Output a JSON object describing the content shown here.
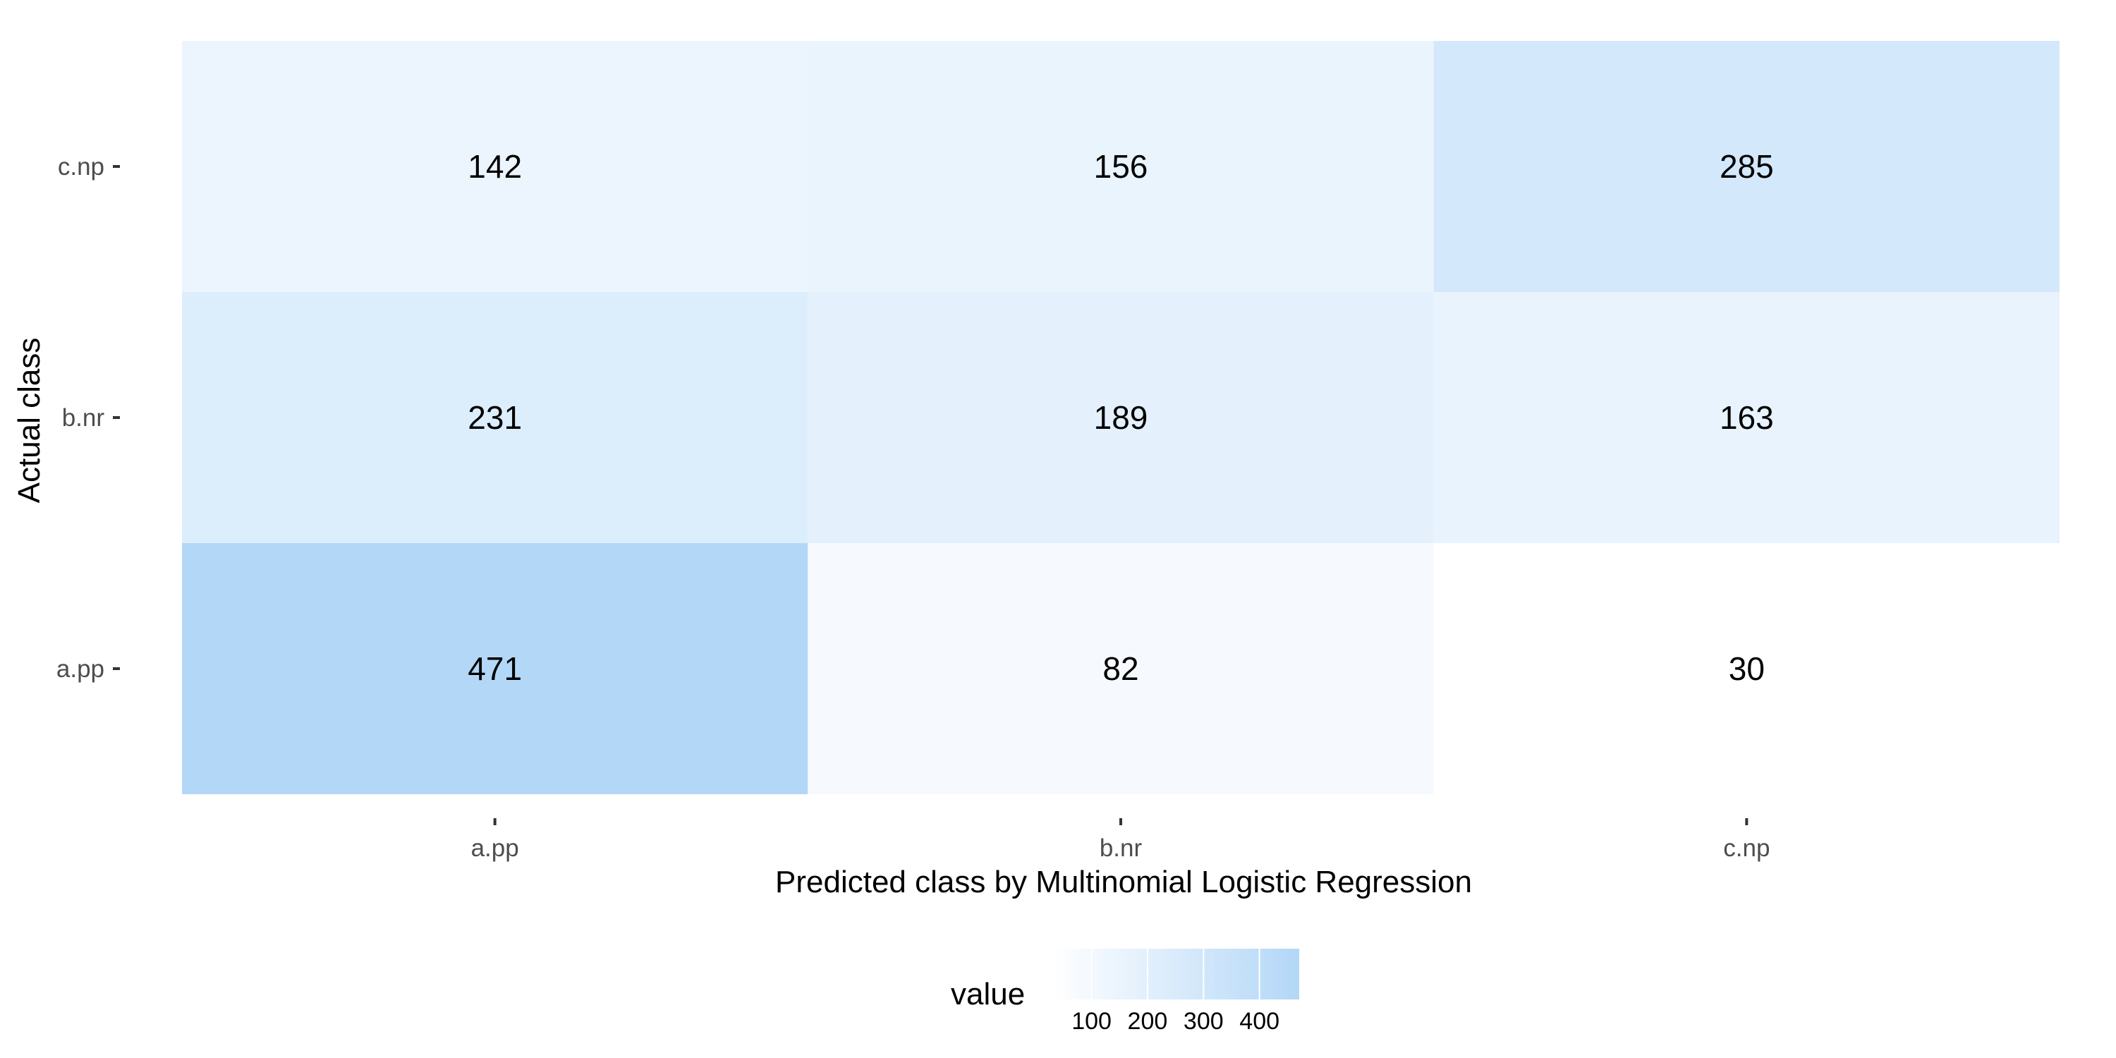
{
  "chart_data": {
    "type": "heatmap",
    "title": "",
    "xlabel": "Predicted class by Multinomial Logistic Regression",
    "ylabel": "Actual class",
    "x_categories": [
      "a.pp",
      "b.nr",
      "c.np"
    ],
    "y_categories": [
      "a.pp",
      "b.nr",
      "c.np"
    ],
    "matrix": [
      [
        471,
        82,
        30
      ],
      [
        231,
        189,
        163
      ],
      [
        142,
        156,
        285
      ]
    ],
    "color_low": "#ffffff",
    "color_high": "#b3d7f7",
    "value_range": [
      30,
      471
    ],
    "grid": false,
    "legend": {
      "title": "value",
      "position": "bottom",
      "ticks": [
        100,
        200,
        300,
        400
      ]
    }
  }
}
